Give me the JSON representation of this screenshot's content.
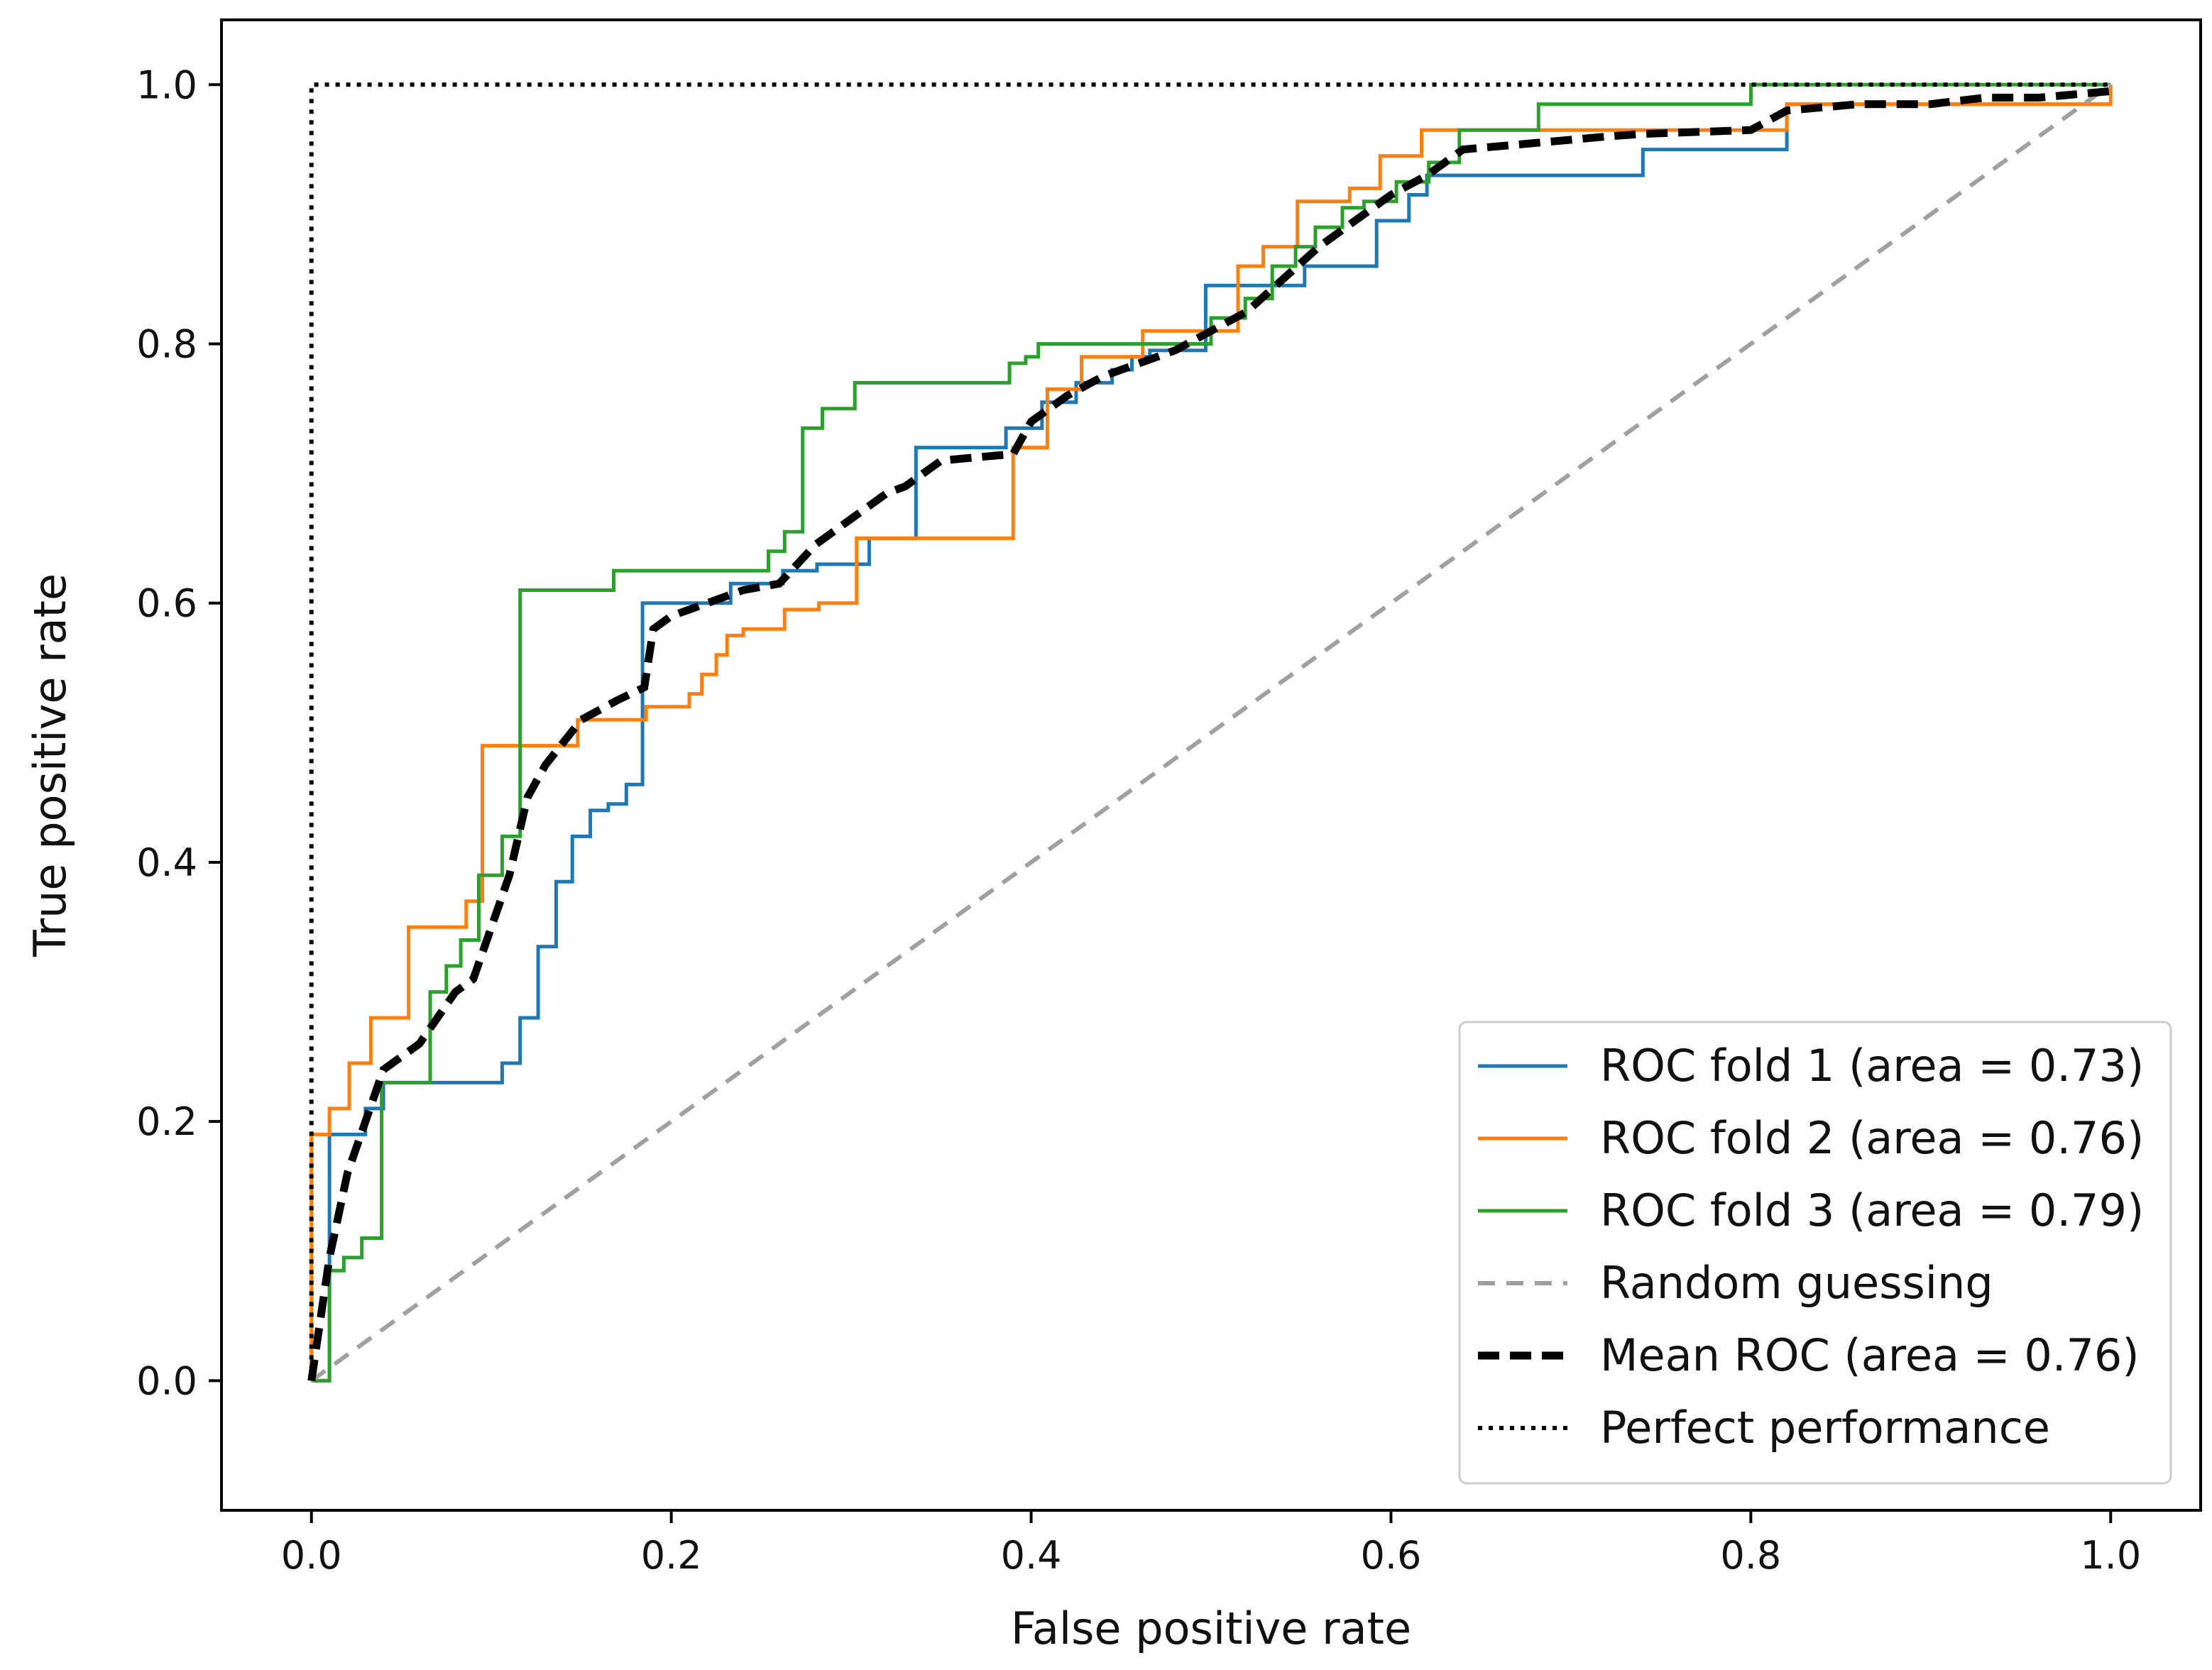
{
  "chart_data": {
    "type": "line",
    "title": "",
    "xlabel": "False positive rate",
    "ylabel": "True positive rate",
    "xlim": [
      -0.05,
      1.05
    ],
    "ylim": [
      -0.1,
      1.05
    ],
    "x_ticks": [
      0.0,
      0.2,
      0.4,
      0.6,
      0.8,
      1.0
    ],
    "y_ticks": [
      0.0,
      0.2,
      0.4,
      0.6,
      0.8,
      1.0
    ],
    "x_tick_labels": [
      "0.0",
      "0.2",
      "0.4",
      "0.6",
      "0.8",
      "1.0"
    ],
    "y_tick_labels": [
      "0.0",
      "0.2",
      "0.4",
      "0.6",
      "0.8",
      "1.0"
    ],
    "grid": false,
    "legend_position": "lower-right",
    "series": [
      {
        "name": "ROC fold 1 (area = 0.73)",
        "color": "#1f77b4",
        "style": "solid",
        "x": [
          0.0,
          0.01,
          0.01,
          0.03,
          0.03,
          0.04,
          0.04,
          0.106,
          0.106,
          0.116,
          0.116,
          0.126,
          0.126,
          0.136,
          0.136,
          0.145,
          0.145,
          0.155,
          0.155,
          0.165,
          0.165,
          0.175,
          0.175,
          0.184,
          0.184,
          0.233,
          0.233,
          0.262,
          0.262,
          0.281,
          0.281,
          0.31,
          0.31,
          0.336,
          0.336,
          0.386,
          0.386,
          0.406,
          0.406,
          0.425,
          0.425,
          0.445,
          0.445,
          0.456,
          0.456,
          0.466,
          0.466,
          0.476,
          0.476,
          0.497,
          0.497,
          0.552,
          0.552,
          0.592,
          0.592,
          0.61,
          0.61,
          0.62,
          0.62,
          0.74,
          0.74,
          0.82,
          0.82,
          1.0
        ],
        "y": [
          0.0,
          0.0,
          0.19,
          0.19,
          0.21,
          0.21,
          0.23,
          0.23,
          0.245,
          0.245,
          0.28,
          0.28,
          0.335,
          0.335,
          0.385,
          0.385,
          0.42,
          0.42,
          0.44,
          0.44,
          0.445,
          0.445,
          0.46,
          0.46,
          0.6,
          0.6,
          0.615,
          0.615,
          0.625,
          0.625,
          0.63,
          0.63,
          0.65,
          0.65,
          0.72,
          0.72,
          0.735,
          0.735,
          0.755,
          0.755,
          0.77,
          0.77,
          0.78,
          0.78,
          0.79,
          0.79,
          0.795,
          0.795,
          0.795,
          0.795,
          0.845,
          0.845,
          0.86,
          0.86,
          0.895,
          0.895,
          0.915,
          0.915,
          0.93,
          0.93,
          0.95,
          0.95,
          0.985,
          0.985
        ]
      },
      {
        "name": "ROC fold 2 (area = 0.76)",
        "color": "#ff7f0e",
        "style": "solid",
        "x": [
          0.0,
          0.0,
          0.01,
          0.01,
          0.021,
          0.021,
          0.033,
          0.033,
          0.054,
          0.054,
          0.086,
          0.086,
          0.095,
          0.095,
          0.148,
          0.148,
          0.186,
          0.186,
          0.21,
          0.21,
          0.217,
          0.217,
          0.225,
          0.225,
          0.231,
          0.231,
          0.24,
          0.24,
          0.263,
          0.263,
          0.282,
          0.282,
          0.303,
          0.303,
          0.39,
          0.39,
          0.409,
          0.409,
          0.428,
          0.428,
          0.462,
          0.462,
          0.515,
          0.515,
          0.529,
          0.529,
          0.548,
          0.548,
          0.577,
          0.577,
          0.594,
          0.594,
          0.617,
          0.617,
          0.641,
          0.641,
          0.74,
          0.74,
          0.82,
          0.82,
          1.0,
          1.0
        ],
        "y": [
          0.0,
          0.19,
          0.19,
          0.21,
          0.21,
          0.245,
          0.245,
          0.28,
          0.28,
          0.35,
          0.35,
          0.37,
          0.37,
          0.49,
          0.49,
          0.51,
          0.51,
          0.52,
          0.52,
          0.53,
          0.53,
          0.545,
          0.545,
          0.56,
          0.56,
          0.575,
          0.575,
          0.58,
          0.58,
          0.595,
          0.595,
          0.6,
          0.6,
          0.65,
          0.65,
          0.72,
          0.72,
          0.765,
          0.765,
          0.79,
          0.79,
          0.81,
          0.81,
          0.86,
          0.86,
          0.875,
          0.875,
          0.91,
          0.91,
          0.92,
          0.92,
          0.945,
          0.945,
          0.965,
          0.965,
          0.965,
          0.965,
          0.965,
          0.965,
          0.985,
          0.985,
          1.0
        ]
      },
      {
        "name": "ROC fold 3 (area = 0.79)",
        "color": "#2ca02c",
        "style": "solid",
        "x": [
          0.0,
          0.01,
          0.01,
          0.018,
          0.018,
          0.028,
          0.028,
          0.039,
          0.039,
          0.066,
          0.066,
          0.075,
          0.075,
          0.083,
          0.083,
          0.093,
          0.093,
          0.106,
          0.106,
          0.116,
          0.116,
          0.168,
          0.168,
          0.254,
          0.254,
          0.263,
          0.263,
          0.273,
          0.273,
          0.284,
          0.284,
          0.302,
          0.302,
          0.388,
          0.388,
          0.397,
          0.397,
          0.404,
          0.404,
          0.5,
          0.5,
          0.519,
          0.519,
          0.534,
          0.534,
          0.547,
          0.547,
          0.558,
          0.558,
          0.573,
          0.573,
          0.585,
          0.585,
          0.603,
          0.603,
          0.621,
          0.621,
          0.638,
          0.638,
          0.682,
          0.682,
          0.8,
          0.8,
          1.0
        ],
        "y": [
          0.0,
          0.0,
          0.085,
          0.085,
          0.095,
          0.095,
          0.11,
          0.11,
          0.23,
          0.23,
          0.3,
          0.3,
          0.32,
          0.32,
          0.34,
          0.34,
          0.39,
          0.39,
          0.42,
          0.42,
          0.61,
          0.61,
          0.625,
          0.625,
          0.64,
          0.64,
          0.655,
          0.655,
          0.735,
          0.735,
          0.75,
          0.75,
          0.77,
          0.77,
          0.785,
          0.785,
          0.79,
          0.79,
          0.8,
          0.8,
          0.82,
          0.82,
          0.835,
          0.835,
          0.86,
          0.86,
          0.875,
          0.875,
          0.89,
          0.89,
          0.905,
          0.905,
          0.91,
          0.91,
          0.925,
          0.925,
          0.94,
          0.94,
          0.965,
          0.965,
          0.985,
          0.985,
          1.0,
          1.0
        ]
      },
      {
        "name": "Random guessing",
        "color": "#a0a0a0",
        "style": "dashed",
        "x": [
          0.0,
          1.0
        ],
        "y": [
          0.0,
          1.0
        ]
      },
      {
        "name": "Mean ROC (area = 0.76)",
        "color": "#000000",
        "style": "dashed-bold",
        "x": [
          0.0,
          0.01,
          0.02,
          0.03,
          0.04,
          0.06,
          0.08,
          0.09,
          0.1,
          0.11,
          0.12,
          0.13,
          0.15,
          0.17,
          0.185,
          0.19,
          0.2,
          0.21,
          0.22,
          0.24,
          0.26,
          0.28,
          0.3,
          0.32,
          0.33,
          0.35,
          0.39,
          0.4,
          0.42,
          0.44,
          0.46,
          0.48,
          0.5,
          0.52,
          0.54,
          0.56,
          0.58,
          0.6,
          0.62,
          0.64,
          0.68,
          0.72,
          0.74,
          0.8,
          0.82,
          0.86,
          0.9,
          0.93,
          0.96,
          1.0
        ],
        "y": [
          0.0,
          0.095,
          0.16,
          0.2,
          0.24,
          0.26,
          0.3,
          0.31,
          0.35,
          0.39,
          0.45,
          0.475,
          0.51,
          0.525,
          0.535,
          0.58,
          0.59,
          0.595,
          0.6,
          0.61,
          0.615,
          0.645,
          0.665,
          0.685,
          0.69,
          0.71,
          0.715,
          0.74,
          0.76,
          0.775,
          0.785,
          0.795,
          0.81,
          0.825,
          0.85,
          0.875,
          0.895,
          0.915,
          0.93,
          0.95,
          0.955,
          0.96,
          0.962,
          0.965,
          0.98,
          0.985,
          0.985,
          0.99,
          0.99,
          0.995
        ]
      },
      {
        "name": "Perfect performance",
        "color": "#000000",
        "style": "dotted",
        "x": [
          0.0,
          0.0,
          1.0
        ],
        "y": [
          0.0,
          1.0,
          1.0
        ]
      }
    ]
  }
}
